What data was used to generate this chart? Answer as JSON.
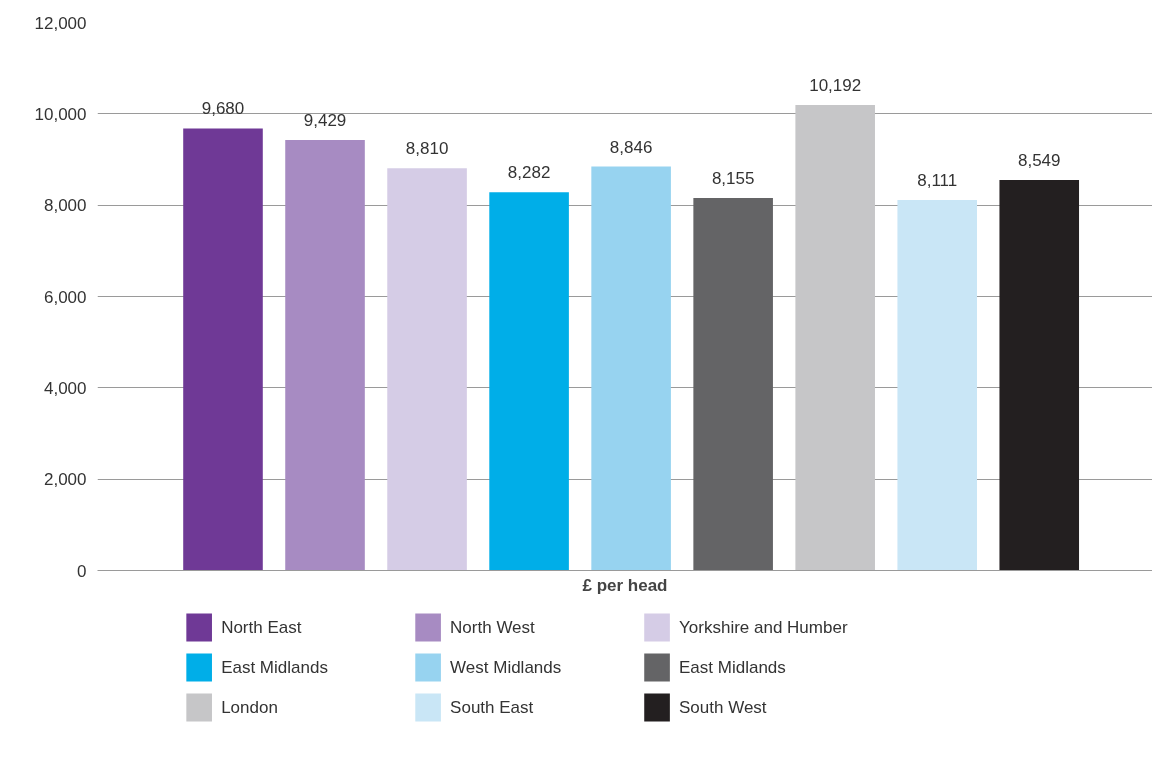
{
  "chart_data": {
    "type": "bar",
    "xlabel": "£ per head",
    "categories": [
      null
    ],
    "series": [
      {
        "name": "North East",
        "color": "#6f3996",
        "values": [
          9680
        ],
        "value_labels": [
          "9,680"
        ]
      },
      {
        "name": "North West",
        "color": "#a78bc2",
        "values": [
          9429
        ],
        "value_labels": [
          "9,429"
        ]
      },
      {
        "name": "Yorkshire and Humber",
        "color": "#d5cce6",
        "values": [
          8810
        ],
        "value_labels": [
          "8,810"
        ]
      },
      {
        "name": "East Midlands",
        "color": "#00aee8",
        "values": [
          8282
        ],
        "value_labels": [
          "8,282"
        ]
      },
      {
        "name": "West Midlands",
        "color": "#97d3f0",
        "values": [
          8846
        ],
        "value_labels": [
          "8,846"
        ]
      },
      {
        "name": "East Midlands",
        "color": "#646466",
        "values": [
          8155
        ],
        "value_labels": [
          "8,155"
        ]
      },
      {
        "name": "London",
        "color": "#c6c6c8",
        "values": [
          10192
        ],
        "value_labels": [
          "10,192"
        ]
      },
      {
        "name": "South East",
        "color": "#c9e6f6",
        "values": [
          8111
        ],
        "value_labels": [
          "8,111"
        ]
      },
      {
        "name": "South West",
        "color": "#231f20",
        "values": [
          8549
        ],
        "value_labels": [
          "8,549"
        ]
      }
    ],
    "ylim": [
      0,
      12000
    ],
    "yticks": [
      0,
      {
        "value": 2000,
        "label": "2,000"
      },
      {
        "value": 4000,
        "label": "4,000"
      },
      {
        "value": 6000,
        "label": "6,000"
      },
      {
        "value": 8000,
        "label": "8,000"
      },
      {
        "value": 10000,
        "label": "10,000"
      },
      {
        "value": 12000,
        "label": "12,000"
      }
    ],
    "grid": "y",
    "legend": "bottom"
  }
}
